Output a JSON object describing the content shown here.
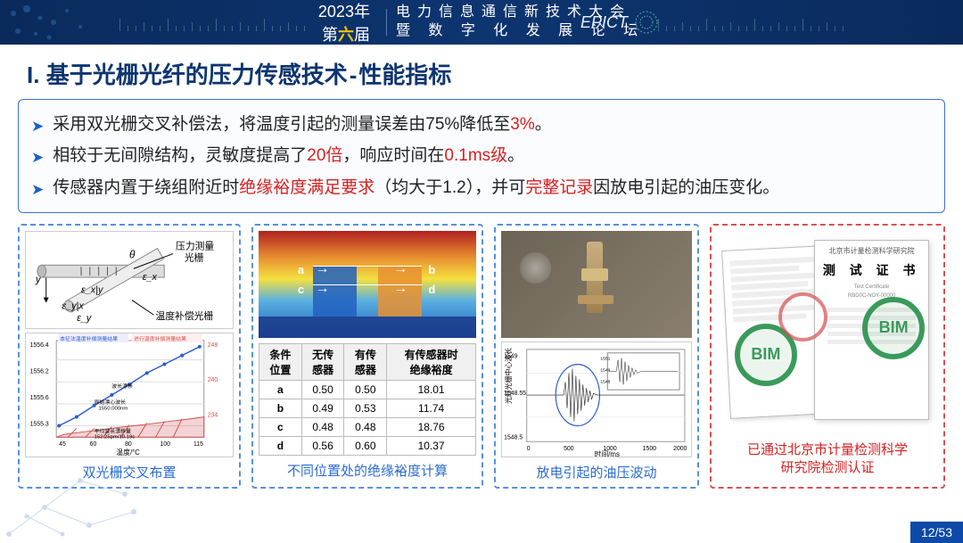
{
  "header": {
    "year_text": "2023年",
    "edition_pre": "第",
    "edition_hl": "六",
    "edition_post": "届",
    "title_line1": "电力信息通信新技术大会",
    "title_line2": "暨 数 字 化 发 展 论 坛",
    "logo_text": "EPICT"
  },
  "main_title": {
    "roman": "I.",
    "part1": "基于光栅光纤的压力传感技术",
    "sep": "-",
    "part2": "性能指标"
  },
  "bullets": [
    {
      "pre": "采用双光栅交叉补偿法，将温度引起的测量误差由75%降低至",
      "hl": "3%",
      "post": "。"
    },
    {
      "pre": "相较于无间隙结构，灵敏度提高了",
      "hl": "20倍",
      "mid": "，响应时间在",
      "hl2": "0.1ms级",
      "post": "。"
    },
    {
      "pre": "传感器内置于绕组附近时",
      "hl": "绝缘裕度满足要求",
      "mid": "（均大于1.2），并可",
      "hl2": "完整记录",
      "post": "因放电引起的油压变化。"
    }
  ],
  "panel1": {
    "caption": "双光栅交叉布置",
    "diag_labels": {
      "x": "x",
      "y": "y",
      "theta": "θ",
      "eps_x": "ε_x",
      "eps_y": "ε_y",
      "eps_xy": "ε_x|y",
      "eps_yx": "ε_y|x",
      "grating1": "压力测量\n光栅",
      "grating2": "温度补偿光栅"
    },
    "chart": {
      "title1": "本征法温度补偿测量结果",
      "title2": "进行温度补偿测量结果",
      "ylabel": "波长/pm",
      "xlabel": "温度/°C",
      "xrange": [
        45,
        115
      ],
      "yleft_range": [
        1555.2,
        1556.4
      ],
      "yright_range": [
        232,
        248
      ],
      "series_labels": [
        "波长漂移",
        "原始漂心波长 1550.000nm",
        "平均波长漂移量 152.25pm/10.19s"
      ],
      "colors": {
        "line_blue": "#2a5bd0",
        "hatch_red": "#d05050",
        "grid": "#cccccc",
        "bg": "#ffffff"
      }
    }
  },
  "panel2": {
    "caption": "不同位置处的绝缘裕度计算",
    "labels": [
      "a",
      "b",
      "c",
      "d"
    ],
    "table": {
      "headers": [
        "条件\n位置",
        "无传\n感器",
        "有传\n感器",
        "有传感器时\n绝缘裕度"
      ],
      "rows": [
        [
          "a",
          "0.50",
          "0.50",
          "18.01"
        ],
        [
          "b",
          "0.49",
          "0.53",
          "11.74"
        ],
        [
          "c",
          "0.48",
          "0.48",
          "18.76"
        ],
        [
          "d",
          "0.56",
          "0.60",
          "10.37"
        ]
      ]
    },
    "thermal_colors": {
      "hot": "#b02020",
      "warm": "#e89030",
      "mid": "#f5e040",
      "cool": "#5ab0e0",
      "cold": "#2060c0"
    }
  },
  "panel3": {
    "caption": "放电引起的油压波动",
    "chart": {
      "ylabel": "光纤光栅中心波长",
      "xlabel": "时间/ms",
      "xrange": [
        0,
        2000
      ],
      "xtick_step": 500,
      "yrange": [
        1548.5,
        1549.0
      ],
      "yticks": [
        1548.5,
        1548.55,
        1549
      ],
      "inset_yrange": [
        1548,
        1550
      ],
      "inset_yticks": [
        1548,
        1549,
        1550,
        1551
      ],
      "colors": {
        "signal": "#222222",
        "ellipse": "#2a5bd0",
        "grid": "#dddddd"
      }
    }
  },
  "panel4": {
    "caption_line1": "已通过北京市计量检测科学",
    "caption_line2": "研究院检测认证",
    "cert_title": "测 试 证 书",
    "cert_org": "北京市计量检测科学研究院",
    "cert_no": "RBD0C-NOY-00000",
    "seal_text": "BIM"
  },
  "footer": {
    "page": "12",
    "total": "53"
  },
  "colors": {
    "header_bg": "#0a2a5c",
    "accent_blue": "#0d3570",
    "link_blue": "#2a6bd0",
    "red": "#d62020",
    "panel_border": "#5590e0",
    "panel_border_red": "#d95050"
  }
}
